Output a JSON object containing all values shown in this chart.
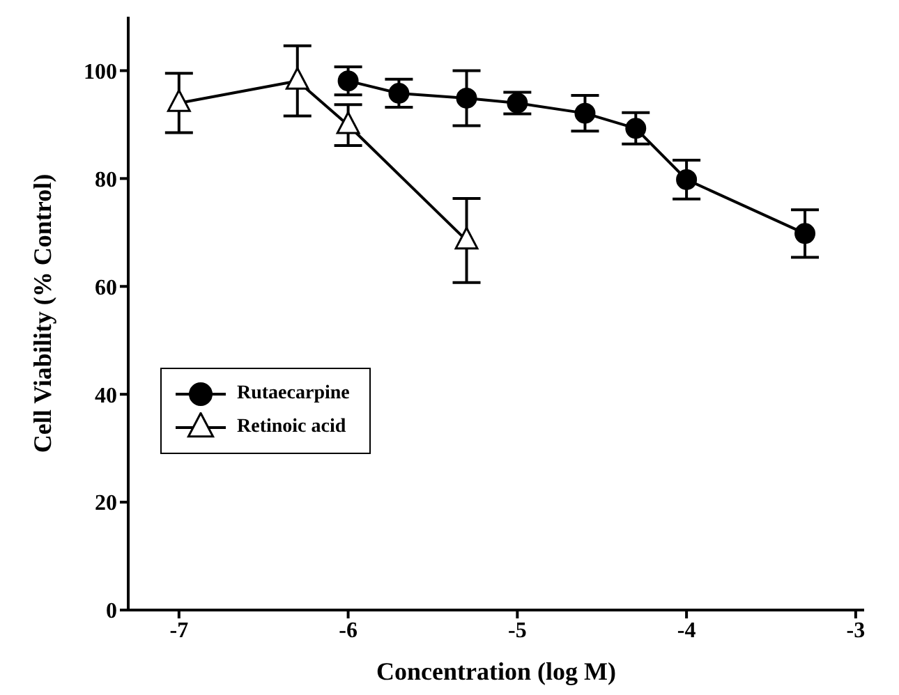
{
  "chart_data": {
    "type": "line",
    "xlabel": "Concentration (log M)",
    "ylabel": "Cell Viability (% Control)",
    "xlim": [
      -7.3,
      -2.95
    ],
    "xticks": [
      -7,
      -6,
      -5,
      -4,
      -3
    ],
    "ylim": [
      0,
      110
    ],
    "yticks": [
      0,
      20,
      40,
      60,
      80,
      100
    ],
    "legend": "left",
    "grid": false,
    "line_style": "solid",
    "series": [
      {
        "name": "Rutaecarpine",
        "color": "#000000",
        "marker": "circle",
        "x": [
          -6,
          -5.7,
          -5.3,
          -5,
          -4.6,
          -4.3,
          -4,
          -3.3
        ],
        "values": [
          98.1,
          95.8,
          94.9,
          94.0,
          92.1,
          89.3,
          79.8,
          69.8
        ],
        "errors": [
          2.6,
          2.6,
          5.1,
          2,
          3.3,
          2.9,
          3.6,
          4.4
        ]
      },
      {
        "name": "Retinoic acid",
        "color": "#000000",
        "marker": "triangle",
        "x": [
          -7,
          -6.3,
          -6,
          -5.3
        ],
        "values": [
          94.0,
          98.1,
          89.9,
          68.5
        ],
        "errors": [
          5.5,
          6.5,
          3.8,
          7.8
        ]
      }
    ]
  }
}
